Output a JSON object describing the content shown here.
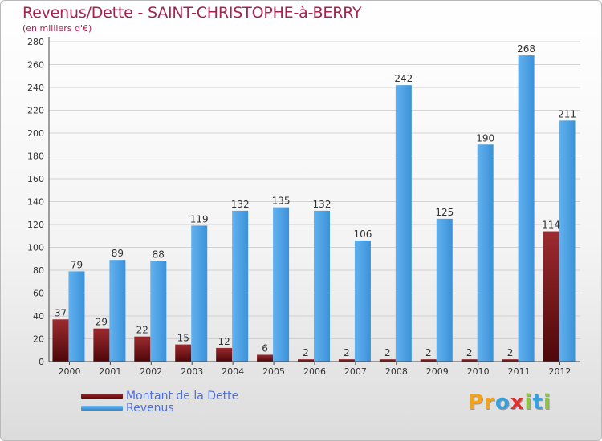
{
  "header": {
    "title": "Revenus/Dette - SAINT-CHRISTOPHE-à-BERRY",
    "subtitle": "(en milliers d'€)"
  },
  "chart_data": {
    "type": "bar",
    "categories": [
      "2000",
      "2001",
      "2002",
      "2003",
      "2004",
      "2005",
      "2006",
      "2007",
      "2008",
      "2009",
      "2010",
      "2011",
      "2012"
    ],
    "series": [
      {
        "name": "Montant de la Dette",
        "color": "#6e0f12",
        "values": [
          37,
          29,
          22,
          15,
          12,
          6,
          2,
          2,
          2,
          2,
          2,
          2,
          114
        ]
      },
      {
        "name": "Revenus",
        "color": "#4ea3e6",
        "values": [
          79,
          89,
          88,
          119,
          132,
          135,
          132,
          106,
          242,
          125,
          190,
          268,
          211
        ]
      }
    ],
    "ylim": [
      0,
      280
    ],
    "yticks": [
      0,
      20,
      40,
      60,
      80,
      100,
      120,
      140,
      160,
      180,
      200,
      220,
      240,
      260,
      280
    ],
    "grid": true,
    "legend": "bottom-left"
  },
  "logo": {
    "letters": [
      {
        "ch": "P",
        "color": "#f2a21c"
      },
      {
        "ch": "r",
        "color": "#f2a21c"
      },
      {
        "ch": "o",
        "color": "#3aa0dc"
      },
      {
        "ch": "x",
        "color": "#e2312d"
      },
      {
        "ch": "i",
        "color": "#8cc63f"
      },
      {
        "ch": "t",
        "color": "#3aa0dc"
      },
      {
        "ch": "i",
        "color": "#8cc63f"
      }
    ]
  }
}
